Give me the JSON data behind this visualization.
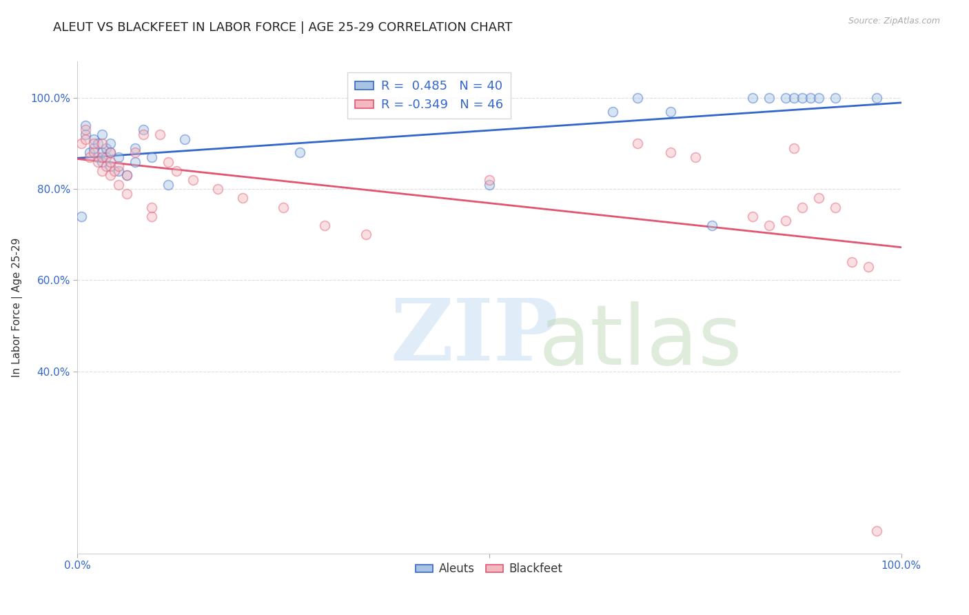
{
  "title": "ALEUT VS BLACKFEET IN LABOR FORCE | AGE 25-29 CORRELATION CHART",
  "source": "Source: ZipAtlas.com",
  "ylabel": "In Labor Force | Age 25-29",
  "r_aleuts": 0.485,
  "n_aleuts": 40,
  "r_blackfeet": -0.349,
  "n_blackfeet": 46,
  "aleuts_color": "#a8c4e0",
  "blackfeet_color": "#f4b8c0",
  "aleuts_line_color": "#3366cc",
  "blackfeet_line_color": "#e05570",
  "aleuts_x": [
    0.005,
    0.01,
    0.01,
    0.015,
    0.02,
    0.02,
    0.025,
    0.025,
    0.03,
    0.03,
    0.03,
    0.035,
    0.035,
    0.04,
    0.04,
    0.04,
    0.05,
    0.05,
    0.06,
    0.07,
    0.07,
    0.08,
    0.09,
    0.11,
    0.13,
    0.27,
    0.5,
    0.65,
    0.68,
    0.72,
    0.77,
    0.82,
    0.84,
    0.86,
    0.87,
    0.88,
    0.89,
    0.9,
    0.92,
    0.97
  ],
  "aleuts_y": [
    0.74,
    0.92,
    0.94,
    0.88,
    0.89,
    0.91,
    0.87,
    0.9,
    0.86,
    0.88,
    0.92,
    0.87,
    0.89,
    0.85,
    0.88,
    0.9,
    0.84,
    0.87,
    0.83,
    0.86,
    0.89,
    0.93,
    0.87,
    0.81,
    0.91,
    0.88,
    0.81,
    0.97,
    1.0,
    0.97,
    0.72,
    1.0,
    1.0,
    1.0,
    1.0,
    1.0,
    1.0,
    1.0,
    1.0,
    1.0
  ],
  "blackfeet_x": [
    0.005,
    0.01,
    0.01,
    0.015,
    0.02,
    0.02,
    0.025,
    0.03,
    0.03,
    0.03,
    0.035,
    0.04,
    0.04,
    0.04,
    0.045,
    0.05,
    0.05,
    0.06,
    0.06,
    0.07,
    0.08,
    0.09,
    0.09,
    0.1,
    0.11,
    0.12,
    0.14,
    0.17,
    0.2,
    0.25,
    0.3,
    0.35,
    0.5,
    0.68,
    0.72,
    0.75,
    0.82,
    0.84,
    0.86,
    0.87,
    0.88,
    0.9,
    0.92,
    0.94,
    0.96,
    0.97
  ],
  "blackfeet_y": [
    0.9,
    0.91,
    0.93,
    0.87,
    0.88,
    0.9,
    0.86,
    0.84,
    0.87,
    0.9,
    0.85,
    0.83,
    0.86,
    0.88,
    0.84,
    0.81,
    0.85,
    0.79,
    0.83,
    0.88,
    0.92,
    0.74,
    0.76,
    0.92,
    0.86,
    0.84,
    0.82,
    0.8,
    0.78,
    0.76,
    0.72,
    0.7,
    0.82,
    0.9,
    0.88,
    0.87,
    0.74,
    0.72,
    0.73,
    0.89,
    0.76,
    0.78,
    0.76,
    0.64,
    0.63,
    0.05
  ],
  "xlim": [
    0.0,
    1.0
  ],
  "ylim": [
    0.0,
    1.08
  ],
  "yticks": [
    0.4,
    0.6,
    0.8,
    1.0
  ],
  "ytick_labels": [
    "40.0%",
    "60.0%",
    "80.0%",
    "100.0%"
  ],
  "xtick_positions": [
    0.0,
    0.5,
    1.0
  ],
  "xtick_labels": [
    "0.0%",
    "",
    "100.0%"
  ],
  "background_color": "#ffffff",
  "tick_color": "#3366cc",
  "grid_color": "#dddddd",
  "title_fontsize": 13,
  "axis_label_fontsize": 11,
  "tick_fontsize": 11,
  "legend_fontsize": 13,
  "marker_size": 100,
  "marker_alpha": 0.45,
  "line_width": 2.0
}
